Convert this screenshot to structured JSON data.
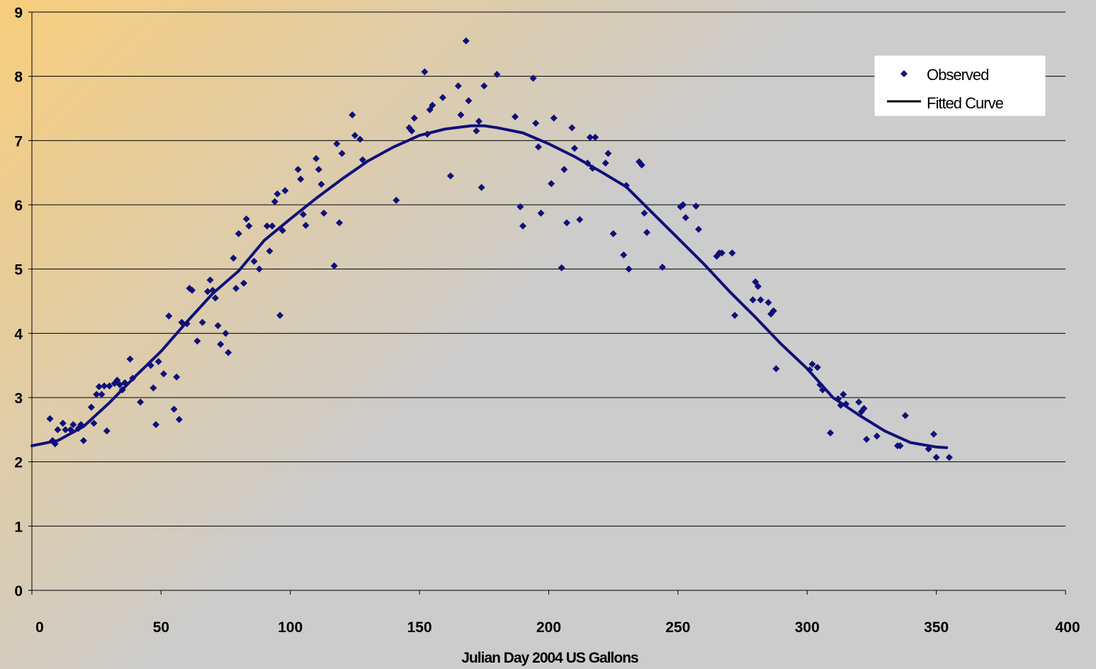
{
  "chart_data": {
    "type": "scatter",
    "xlabel": "Julian Day 2004 US Gallons",
    "ylabel": "",
    "xlim": [
      0,
      400
    ],
    "ylim": [
      0,
      9
    ],
    "xticks": [
      0,
      50,
      100,
      150,
      200,
      250,
      300,
      350,
      400
    ],
    "yticks": [
      0,
      1,
      2,
      3,
      4,
      5,
      6,
      7,
      8,
      9
    ],
    "grid": {
      "horizontal": true,
      "vertical": false
    },
    "legend_position": "top-right",
    "colors": {
      "series": "#0f0f7a",
      "grid": "#000000",
      "gradient_start": "#f7cd7c",
      "gradient_end": "#cccccc"
    },
    "series": [
      {
        "name": "Observed",
        "kind": "scatter",
        "marker": "diamond",
        "points": [
          [
            7,
            2.67
          ],
          [
            8,
            2.33
          ],
          [
            9,
            2.28
          ],
          [
            10,
            2.5
          ],
          [
            12,
            2.6
          ],
          [
            13,
            2.5
          ],
          [
            15,
            2.5
          ],
          [
            16,
            2.58
          ],
          [
            18,
            2.52
          ],
          [
            19,
            2.58
          ],
          [
            20,
            2.33
          ],
          [
            23,
            2.85
          ],
          [
            24,
            2.6
          ],
          [
            25,
            3.05
          ],
          [
            26,
            3.17
          ],
          [
            27,
            3.05
          ],
          [
            28,
            3.18
          ],
          [
            29,
            2.48
          ],
          [
            30,
            3.18
          ],
          [
            32,
            3.22
          ],
          [
            33,
            3.27
          ],
          [
            34,
            3.2
          ],
          [
            35,
            3.12
          ],
          [
            36,
            3.23
          ],
          [
            38,
            3.6
          ],
          [
            39,
            3.3
          ],
          [
            42,
            2.93
          ],
          [
            46,
            3.5
          ],
          [
            47,
            3.15
          ],
          [
            48,
            2.58
          ],
          [
            49,
            3.56
          ],
          [
            51,
            3.37
          ],
          [
            53,
            4.27
          ],
          [
            55,
            2.82
          ],
          [
            56,
            3.32
          ],
          [
            57,
            2.66
          ],
          [
            58,
            4.17
          ],
          [
            60,
            4.15
          ],
          [
            61,
            4.7
          ],
          [
            62,
            4.67
          ],
          [
            64,
            3.88
          ],
          [
            66,
            4.17
          ],
          [
            68,
            4.65
          ],
          [
            69,
            4.83
          ],
          [
            70,
            4.67
          ],
          [
            71,
            4.55
          ],
          [
            72,
            4.12
          ],
          [
            73,
            3.83
          ],
          [
            75,
            4.0
          ],
          [
            76,
            3.7
          ],
          [
            78,
            5.17
          ],
          [
            79,
            4.7
          ],
          [
            80,
            5.55
          ],
          [
            82,
            4.78
          ],
          [
            83,
            5.78
          ],
          [
            84,
            5.67
          ],
          [
            86,
            5.12
          ],
          [
            88,
            5.0
          ],
          [
            91,
            5.67
          ],
          [
            92,
            5.28
          ],
          [
            93,
            5.67
          ],
          [
            94,
            6.05
          ],
          [
            95,
            6.17
          ],
          [
            96,
            4.28
          ],
          [
            97,
            5.6
          ],
          [
            98,
            6.22
          ],
          [
            103,
            6.55
          ],
          [
            104,
            6.4
          ],
          [
            105,
            5.85
          ],
          [
            106,
            5.68
          ],
          [
            110,
            6.72
          ],
          [
            111,
            6.55
          ],
          [
            112,
            6.32
          ],
          [
            113,
            5.87
          ],
          [
            117,
            5.05
          ],
          [
            118,
            6.95
          ],
          [
            119,
            5.72
          ],
          [
            120,
            6.8
          ],
          [
            124,
            7.4
          ],
          [
            125,
            7.08
          ],
          [
            127,
            7.02
          ],
          [
            128,
            6.7
          ],
          [
            141,
            6.07
          ],
          [
            146,
            7.2
          ],
          [
            147,
            7.15
          ],
          [
            148,
            7.35
          ],
          [
            152,
            8.07
          ],
          [
            153,
            7.1
          ],
          [
            154,
            7.48
          ],
          [
            155,
            7.55
          ],
          [
            159,
            7.67
          ],
          [
            162,
            6.45
          ],
          [
            165,
            7.85
          ],
          [
            166,
            7.4
          ],
          [
            168,
            8.55
          ],
          [
            169,
            7.62
          ],
          [
            172,
            7.15
          ],
          [
            173,
            7.3
          ],
          [
            174,
            6.27
          ],
          [
            175,
            7.85
          ],
          [
            180,
            8.03
          ],
          [
            187,
            7.37
          ],
          [
            189,
            5.97
          ],
          [
            190,
            5.67
          ],
          [
            194,
            7.97
          ],
          [
            195,
            7.27
          ],
          [
            196,
            6.9
          ],
          [
            197,
            5.87
          ],
          [
            201,
            6.33
          ],
          [
            202,
            7.35
          ],
          [
            205,
            5.02
          ],
          [
            206,
            6.55
          ],
          [
            207,
            5.72
          ],
          [
            209,
            7.2
          ],
          [
            210,
            6.88
          ],
          [
            212,
            5.77
          ],
          [
            215,
            6.65
          ],
          [
            216,
            7.05
          ],
          [
            217,
            6.57
          ],
          [
            218,
            7.05
          ],
          [
            222,
            6.65
          ],
          [
            223,
            6.8
          ],
          [
            225,
            5.55
          ],
          [
            229,
            5.22
          ],
          [
            230,
            6.3
          ],
          [
            231,
            5.0
          ],
          [
            235,
            6.67
          ],
          [
            236,
            6.62
          ],
          [
            237,
            5.87
          ],
          [
            238,
            5.57
          ],
          [
            244,
            5.03
          ],
          [
            251,
            5.97
          ],
          [
            252,
            6.0
          ],
          [
            253,
            5.8
          ],
          [
            257,
            5.98
          ],
          [
            258,
            5.62
          ],
          [
            265,
            5.2
          ],
          [
            266,
            5.25
          ],
          [
            267,
            5.25
          ],
          [
            271,
            5.25
          ],
          [
            272,
            4.28
          ],
          [
            279,
            4.52
          ],
          [
            280,
            4.8
          ],
          [
            281,
            4.73
          ],
          [
            282,
            4.52
          ],
          [
            285,
            4.48
          ],
          [
            286,
            4.3
          ],
          [
            287,
            4.35
          ],
          [
            288,
            3.45
          ],
          [
            301,
            3.43
          ],
          [
            302,
            3.52
          ],
          [
            304,
            3.47
          ],
          [
            305,
            3.2
          ],
          [
            306,
            3.12
          ],
          [
            309,
            2.45
          ],
          [
            312,
            2.98
          ],
          [
            313,
            2.88
          ],
          [
            314,
            3.05
          ],
          [
            315,
            2.9
          ],
          [
            320,
            2.93
          ],
          [
            321,
            2.78
          ],
          [
            322,
            2.83
          ],
          [
            323,
            2.35
          ],
          [
            327,
            2.4
          ],
          [
            335,
            2.25
          ],
          [
            336,
            2.25
          ],
          [
            338,
            2.72
          ],
          [
            347,
            2.2
          ],
          [
            349,
            2.43
          ],
          [
            350,
            2.07
          ],
          [
            355,
            2.07
          ]
        ]
      },
      {
        "name": "Fitted Curve",
        "kind": "line",
        "points": [
          [
            0,
            2.25
          ],
          [
            10,
            2.33
          ],
          [
            20,
            2.55
          ],
          [
            30,
            2.92
          ],
          [
            40,
            3.33
          ],
          [
            50,
            3.72
          ],
          [
            60,
            4.18
          ],
          [
            70,
            4.62
          ],
          [
            80,
            4.97
          ],
          [
            90,
            5.45
          ],
          [
            100,
            5.78
          ],
          [
            110,
            6.1
          ],
          [
            120,
            6.4
          ],
          [
            130,
            6.68
          ],
          [
            140,
            6.9
          ],
          [
            150,
            7.08
          ],
          [
            160,
            7.18
          ],
          [
            170,
            7.23
          ],
          [
            175,
            7.23
          ],
          [
            180,
            7.2
          ],
          [
            190,
            7.12
          ],
          [
            200,
            6.95
          ],
          [
            210,
            6.75
          ],
          [
            220,
            6.52
          ],
          [
            230,
            6.28
          ],
          [
            240,
            5.88
          ],
          [
            250,
            5.48
          ],
          [
            260,
            5.08
          ],
          [
            270,
            4.65
          ],
          [
            280,
            4.25
          ],
          [
            290,
            3.83
          ],
          [
            300,
            3.45
          ],
          [
            310,
            3.0
          ],
          [
            320,
            2.73
          ],
          [
            330,
            2.48
          ],
          [
            340,
            2.3
          ],
          [
            350,
            2.23
          ],
          [
            354,
            2.22
          ]
        ]
      }
    ]
  }
}
